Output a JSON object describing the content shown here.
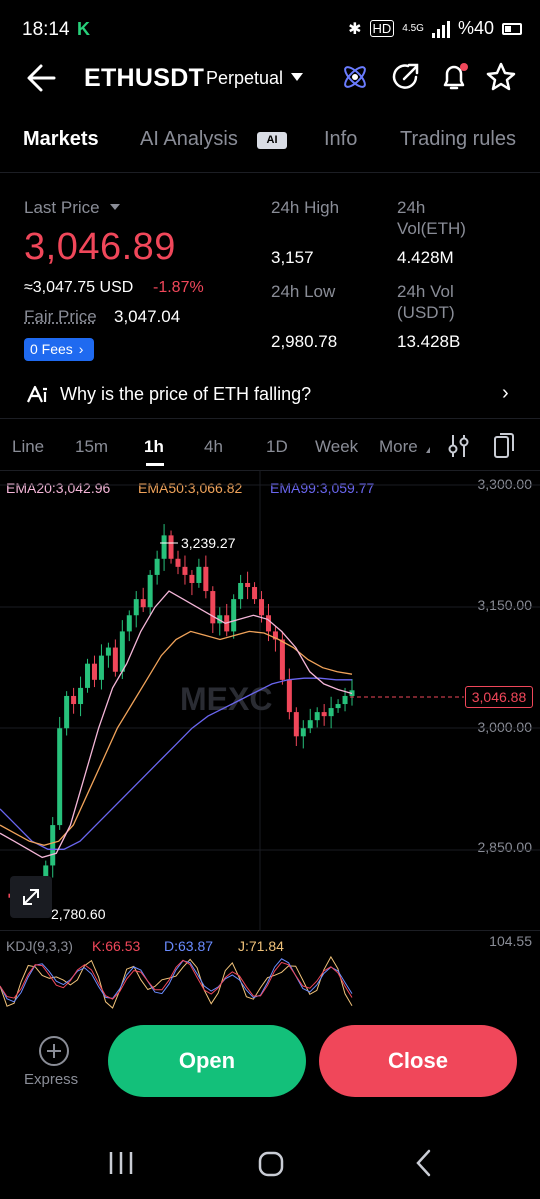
{
  "status_bar": {
    "time": "18:14",
    "battery": "%40",
    "network": "4.5G"
  },
  "header": {
    "pair": "ETHUSDT",
    "contract_type": "Perpetual"
  },
  "tabs": [
    {
      "label": "Markets",
      "active": true
    },
    {
      "label": "AI Analysis",
      "badge": "AI"
    },
    {
      "label": "Info"
    },
    {
      "label": "Trading rules"
    }
  ],
  "ticker": {
    "last_price_label": "Last Price",
    "last_price": "3,046.89",
    "usd_equiv": "≈3,047.75 USD",
    "change_pct": "-1.87%",
    "fair_price_label": "Fair Price",
    "fair_price": "3,047.04",
    "fees_label": "0 Fees",
    "high_label": "24h High",
    "high": "3,157",
    "low_label": "24h Low",
    "low": "2,980.78",
    "vol_eth_label_1": "24h",
    "vol_eth_label_2": "Vol(ETH)",
    "vol_eth": "4.428M",
    "vol_usdt_label_1": "24h Vol",
    "vol_usdt_label_2": "(USDT)",
    "vol_usdt": "13.428B"
  },
  "ai_prompt": "Why is the price of ETH falling?",
  "chart_tabs": [
    "Line",
    "15m",
    "1h",
    "4h",
    "1D",
    "Week",
    "More"
  ],
  "chart_tab_active": "1h",
  "indicators": {
    "ema20": "EMA20:3,042.96",
    "ema50": "EMA50:3,066.82",
    "ema99": "EMA99:3,059.77",
    "kdj_label": "KDJ(9,3,3)",
    "kdj_k": "K:66.53",
    "kdj_d": "D:63.87",
    "kdj_j": "J:71.84",
    "kdj_max": "104.55"
  },
  "y_axis": [
    "3,300.00",
    "3,150.00",
    "3,000.00",
    "2,850.00"
  ],
  "current_price_tag": "3,046.88",
  "high_marker": "3,239.27",
  "low_marker": "2,780.60",
  "watermark": "MEXC",
  "colors": {
    "up": "#27c17b",
    "down": "#f0475a",
    "ema20": "#f4b6d8",
    "ema50": "#f0a35a",
    "ema99": "#6a66f0",
    "accent": "#1f6af0"
  },
  "chart_data": {
    "type": "candlestick",
    "ylim": [
      2750,
      3320
    ],
    "price_points": [
      2795,
      2790,
      2785,
      2782,
      2790,
      2800,
      2830,
      2880,
      3000,
      3040,
      3030,
      3050,
      3080,
      3060,
      3090,
      3100,
      3070,
      3120,
      3140,
      3160,
      3150,
      3190,
      3210,
      3239,
      3210,
      3200,
      3190,
      3180,
      3200,
      3170,
      3130,
      3140,
      3120,
      3160,
      3180,
      3175,
      3160,
      3140,
      3120,
      3110,
      3060,
      3020,
      2990,
      3000,
      3010,
      3020,
      3015,
      3025,
      3030,
      3040,
      3047
    ],
    "ema20": [
      2870,
      2860,
      2850,
      2840,
      2845,
      2880,
      2940,
      3000,
      3050,
      3080,
      3120,
      3150,
      3170,
      3160,
      3150,
      3140,
      3130,
      3135,
      3140,
      3135,
      3120,
      3100,
      3070,
      3055,
      3048,
      3043
    ],
    "ema50": [
      2880,
      2870,
      2860,
      2855,
      2860,
      2880,
      2920,
      2960,
      3000,
      3030,
      3060,
      3090,
      3110,
      3120,
      3115,
      3110,
      3115,
      3120,
      3118,
      3110,
      3100,
      3085,
      3075,
      3070,
      3067
    ],
    "ema99": [
      2900,
      2880,
      2860,
      2850,
      2850,
      2860,
      2880,
      2900,
      2920,
      2940,
      2960,
      2980,
      3000,
      3015,
      3025,
      3035,
      3045,
      3055,
      3060,
      3062,
      3062,
      3060,
      3060
    ]
  }
}
